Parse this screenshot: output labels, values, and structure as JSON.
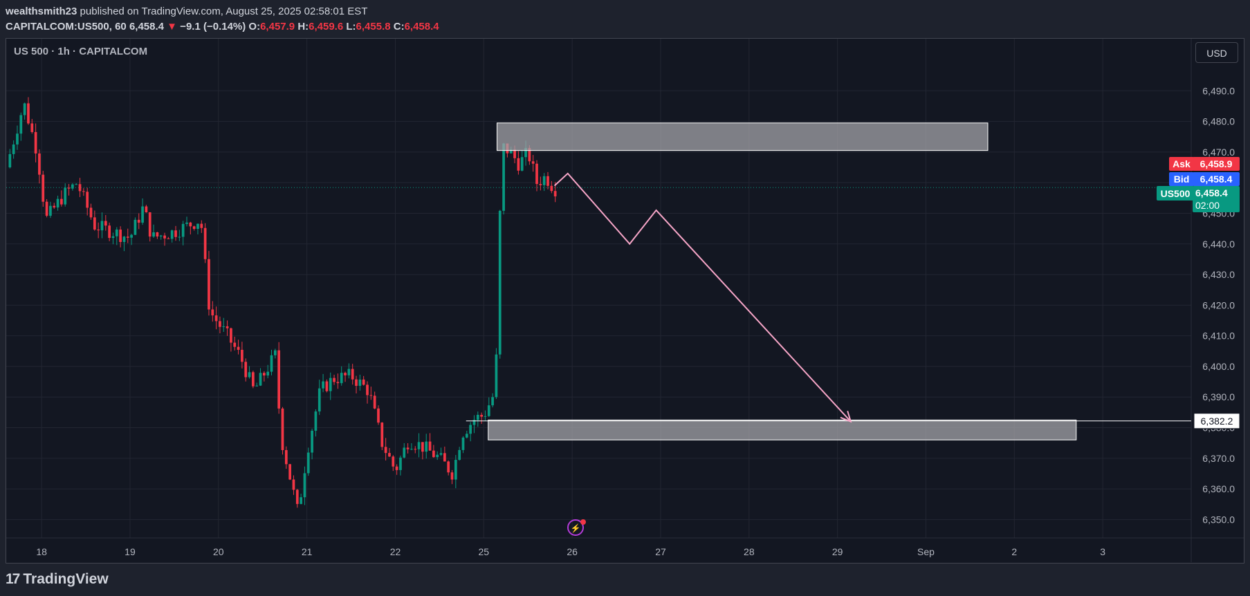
{
  "header": {
    "user": "wealthsmith23",
    "published": "published on TradingView.com, August 25, 2025 02:58:01 EST",
    "symbol": "CAPITALCOM:US500, 60",
    "last": "6,458.4",
    "change": "−9.1 (−0.14%)",
    "o_label": "O:",
    "o_value": "6,457.9",
    "h_label": "H:",
    "h_value": "6,459.6",
    "l_label": "L:",
    "l_value": "6,455.8",
    "c_label": "C:",
    "c_value": "6,458.4"
  },
  "symbol_label": "US 500 · 1h · CAPITALCOM",
  "currency_button": "USD",
  "footer": {
    "brand": "TradingView"
  },
  "colors": {
    "up": "#089981",
    "down": "#f23645",
    "zone": "#a3a3a8",
    "projection": "#f7a6c8",
    "ask": "#f23645",
    "bid": "#2962ff",
    "last": "#089981"
  },
  "chart_data": {
    "type": "candlestick",
    "ylim": [
      6344,
      6507
    ],
    "y_ticks": [
      6350,
      6360,
      6370,
      6380,
      6390,
      6400,
      6410,
      6420,
      6430,
      6440,
      6450,
      6460,
      6470,
      6480,
      6490
    ],
    "y_tick_labels": [
      "6,350.0",
      "6,360.0",
      "6,370.0",
      "6,380.0",
      "6,390.0",
      "6,400.0",
      "6,410.0",
      "6,420.0",
      "6,430.0",
      "6,440.0",
      "6,450.0",
      "6,460.0",
      "6,470.0",
      "6,480.0",
      "6,490.0"
    ],
    "x_ticks": [
      {
        "label": "18",
        "t": 17.8
      },
      {
        "label": "19",
        "t": 18.8
      },
      {
        "label": "20",
        "t": 19.8
      },
      {
        "label": "21",
        "t": 20.8
      },
      {
        "label": "22",
        "t": 21.8
      },
      {
        "label": "25",
        "t": 22.8
      },
      {
        "label": "26",
        "t": 23.8
      },
      {
        "label": "27",
        "t": 24.8
      },
      {
        "label": "28",
        "t": 25.8
      },
      {
        "label": "29",
        "t": 26.8
      },
      {
        "label": "Sep",
        "t": 27.8
      },
      {
        "label": "2",
        "t": 28.8
      },
      {
        "label": "3",
        "t": 29.8
      }
    ],
    "xlim": [
      17.4,
      30.8
    ],
    "waypoints": [
      [
        17.4,
        6465
      ],
      [
        17.6,
        6486
      ],
      [
        17.75,
        6470
      ],
      [
        17.85,
        6448
      ],
      [
        18.05,
        6456
      ],
      [
        18.2,
        6460
      ],
      [
        18.4,
        6446
      ],
      [
        18.6,
        6444
      ],
      [
        18.8,
        6442
      ],
      [
        18.95,
        6452
      ],
      [
        19.05,
        6442
      ],
      [
        19.3,
        6444
      ],
      [
        19.6,
        6448
      ],
      [
        19.7,
        6418
      ],
      [
        19.9,
        6410
      ],
      [
        20.05,
        6403
      ],
      [
        20.2,
        6392
      ],
      [
        20.45,
        6404
      ],
      [
        20.5,
        6378
      ],
      [
        20.7,
        6352
      ],
      [
        20.8,
        6372
      ],
      [
        20.95,
        6392
      ],
      [
        21.1,
        6396
      ],
      [
        21.3,
        6397
      ],
      [
        21.5,
        6392
      ],
      [
        21.65,
        6375
      ],
      [
        21.8,
        6366
      ],
      [
        21.95,
        6376
      ],
      [
        22.1,
        6374
      ],
      [
        22.3,
        6370
      ],
      [
        22.45,
        6365
      ],
      [
        22.55,
        6378
      ],
      [
        22.7,
        6383
      ],
      [
        22.8,
        6384
      ],
      [
        22.9,
        6390
      ],
      [
        22.95,
        6405
      ],
      [
        23.0,
        6472
      ],
      [
        23.1,
        6470
      ],
      [
        23.2,
        6466
      ],
      [
        23.3,
        6470
      ],
      [
        23.4,
        6460
      ],
      [
        23.5,
        6462
      ],
      [
        23.6,
        6458
      ]
    ],
    "zones": [
      {
        "t0": 22.95,
        "t1": 28.5,
        "y0": 6470.5,
        "y1": 6479.5
      },
      {
        "t0": 22.85,
        "t1": 29.5,
        "y0": 6376,
        "y1": 6382.5
      }
    ],
    "projection": [
      [
        23.6,
        6459
      ],
      [
        23.75,
        6463
      ],
      [
        24.45,
        6440
      ],
      [
        24.75,
        6451
      ],
      [
        26.95,
        6382
      ]
    ],
    "projection_hline": {
      "t0": 22.6,
      "t1": 30.8,
      "y": 6382.2
    },
    "last_price_line": 6458.4,
    "price_labels": {
      "ask_label": "Ask",
      "ask": "6,458.9",
      "bid_label": "Bid",
      "bid": "6,458.4",
      "sym_label": "US500",
      "last": "6,458.4",
      "countdown": "02:00",
      "level": "6,382.2"
    }
  }
}
